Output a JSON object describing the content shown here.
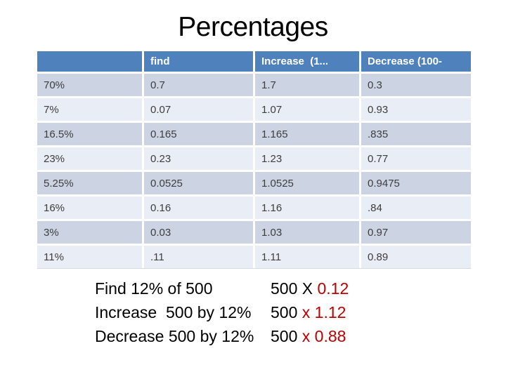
{
  "slide": {
    "title": "Percentages",
    "table": {
      "headers": [
        "",
        "find",
        "Increase  (1...",
        "Decrease (100-"
      ],
      "rows": [
        [
          "70%",
          "0.7",
          "1.7",
          "0.3"
        ],
        [
          "7%",
          "0.07",
          "1.07",
          "0.93"
        ],
        [
          "16.5%",
          "0.165",
          "1.165",
          ".835"
        ],
        [
          "23%",
          "0.23",
          "1.23",
          "0.77"
        ],
        [
          "5.25%",
          "0.0525",
          "1.0525",
          "0.9475"
        ],
        [
          "16%",
          "0.16",
          "1.16",
          ".84"
        ],
        [
          "3%",
          "0.03",
          "1.03",
          "0.97"
        ],
        [
          "11%",
          ".11",
          "1.11",
          "0.89"
        ]
      ]
    },
    "formulas": [
      {
        "problem": "Find 12% of 500",
        "expr_black": "500 X ",
        "expr_red": "0.12"
      },
      {
        "problem": "Increase  500 by 12%",
        "expr_black": "500 ",
        "expr_red": "x 1.12"
      },
      {
        "problem": "Decrease 500 by 12%",
        "expr_black": "500 ",
        "expr_red": "x 0.88"
      }
    ],
    "colors": {
      "header_bg": "#4f81bd",
      "header_text": "#ffffff",
      "band_dark": "#ccd3e3",
      "band_light": "#e9edf5",
      "accent_red": "#c00000",
      "title_text": "#000000"
    }
  }
}
